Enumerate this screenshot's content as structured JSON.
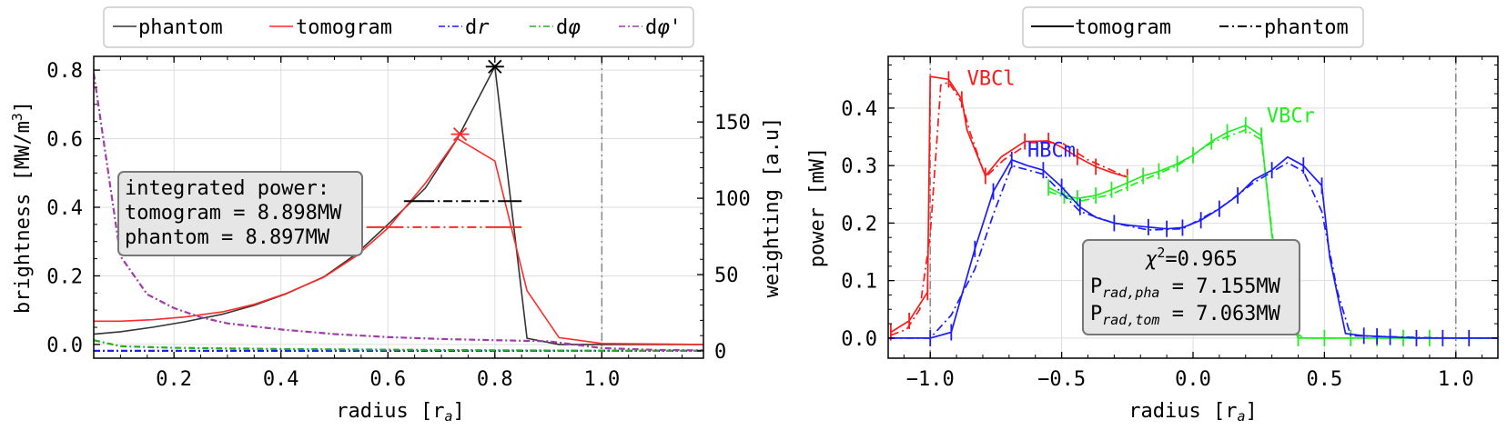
{
  "chart_data": [
    {
      "type": "line",
      "xlabel": "radius [r",
      "xlabel_sub": "a",
      "xlabel_end": "]",
      "ylabel": "brightness [MW/m",
      "ylabel_sup": "3",
      "ylabel_end": "]",
      "y2label": "weighting [a.u]",
      "xlim": [
        0.05,
        1.19
      ],
      "ylim": [
        -0.04,
        0.84
      ],
      "y2lim": [
        -4.8,
        193
      ],
      "x_ticks": [
        0.2,
        0.4,
        0.6,
        0.8,
        1.0
      ],
      "x_tick_labels": [
        "0.2",
        "0.4",
        "0.6",
        "0.8",
        "1.0"
      ],
      "y_ticks": [
        0.0,
        0.2,
        0.4,
        0.6,
        0.8
      ],
      "y_tick_labels": [
        "0.0",
        "0.2",
        "0.4",
        "0.6",
        "0.8"
      ],
      "y2_ticks": [
        0,
        50,
        100,
        150
      ],
      "y2_tick_labels": [
        "0",
        "50",
        "100",
        "150"
      ],
      "grid": true,
      "legend_position": "top (outside)",
      "legend": [
        {
          "label": "phantom",
          "color": "#333333",
          "style": "solid"
        },
        {
          "label": "tomogram",
          "color": "#ff2a2a",
          "style": "solid"
        },
        {
          "label": "dr",
          "label_italic": "r",
          "label_plain": "d",
          "color": "#1c1cff",
          "style": "dashdot"
        },
        {
          "label": "dφ",
          "label_italic": "φ",
          "label_plain": "d",
          "color": "#22b022",
          "style": "dashdot"
        },
        {
          "label": "dφ'",
          "label_italic": "φ'",
          "label_plain": "d",
          "color": "#a03ca8",
          "style": "dashdot"
        }
      ],
      "series": [
        {
          "name": "phantom",
          "color": "#333333",
          "style": "solid",
          "axis": "left",
          "x": [
            0.05,
            0.1,
            0.16,
            0.22,
            0.29,
            0.35,
            0.41,
            0.48,
            0.54,
            0.6,
            0.67,
            0.73,
            0.8,
            0.86,
            0.92,
            1.0,
            1.19
          ],
          "y": [
            0.03,
            0.037,
            0.05,
            0.066,
            0.088,
            0.114,
            0.148,
            0.197,
            0.263,
            0.35,
            0.456,
            0.6,
            0.81,
            0.018,
            0.0,
            0.0,
            0.0
          ]
        },
        {
          "name": "tomogram",
          "color": "#ff2a2a",
          "style": "solid",
          "axis": "left",
          "x": [
            0.05,
            0.1,
            0.16,
            0.22,
            0.29,
            0.35,
            0.41,
            0.48,
            0.54,
            0.6,
            0.67,
            0.73,
            0.8,
            0.86,
            0.92,
            1.0,
            1.19
          ],
          "y": [
            0.068,
            0.068,
            0.072,
            0.08,
            0.095,
            0.117,
            0.149,
            0.196,
            0.257,
            0.339,
            0.47,
            0.6,
            0.535,
            0.157,
            0.02,
            0.003,
            0.0
          ]
        },
        {
          "name": "dr",
          "color": "#1c1cff",
          "style": "dashdot",
          "axis": "right",
          "x": [
            0.05,
            1.19
          ],
          "y": [
            0.0,
            0.0
          ]
        },
        {
          "name": "dφ",
          "color": "#22b022",
          "style": "dashdot",
          "axis": "right",
          "x": [
            0.05,
            0.1,
            0.2,
            0.4,
            0.6,
            0.8,
            1.0,
            1.19
          ],
          "y": [
            7.0,
            3.0,
            2.0,
            1.2,
            0.8,
            0.4,
            0.1,
            0.0
          ]
        },
        {
          "name": "dφ'",
          "color": "#a03ca8",
          "style": "dashdot",
          "axis": "right",
          "x": [
            0.05,
            0.1,
            0.15,
            0.2,
            0.25,
            0.3,
            0.35,
            0.4,
            0.5,
            0.6,
            0.7,
            0.8,
            0.9,
            0.93,
            1.0,
            1.1,
            1.19
          ],
          "y": [
            182,
            62,
            37,
            28,
            22,
            18,
            16,
            14,
            11,
            9,
            7.8,
            7,
            6.3,
            5,
            1.8,
            0.6,
            0.3
          ]
        }
      ],
      "markers": [
        {
          "series": "phantom",
          "x": 0.8,
          "y": 0.81,
          "symbol": "x-star",
          "color": "#000000"
        },
        {
          "series": "tomogram",
          "x": 0.735,
          "y": 0.613,
          "symbol": "x-star",
          "color": "#ff2a2a"
        }
      ],
      "fwhm_lines": [
        {
          "color": "#000000",
          "x": [
            0.63,
            0.85
          ],
          "y": 0.418,
          "style": "solid-dashdot-solid"
        },
        {
          "color": "#ff2a2a",
          "x": [
            0.56,
            0.85
          ],
          "y": 0.342,
          "style": "solid-dashdot-solid"
        }
      ],
      "vline": {
        "x": 1.0,
        "color": "#888888",
        "style": "dashdot"
      },
      "textbox": {
        "lines": [
          "integrated power:",
          "tomogram = 8.898MW",
          "phantom = 8.897MW"
        ],
        "position": "center-left"
      }
    },
    {
      "type": "line",
      "xlabel": "radius [r",
      "xlabel_sub": "a",
      "xlabel_end": "]",
      "ylabel": "power [mW]",
      "xlim": [
        -1.16,
        1.16
      ],
      "ylim": [
        -0.035,
        0.49
      ],
      "x_ticks": [
        -1.0,
        -0.5,
        0.0,
        0.5,
        1.0
      ],
      "x_tick_labels": [
        "−1.0",
        "−0.5",
        "0.0",
        "0.5",
        "1.0"
      ],
      "y_ticks": [
        0.0,
        0.1,
        0.2,
        0.3,
        0.4
      ],
      "y_tick_labels": [
        "0.0",
        "0.1",
        "0.2",
        "0.3",
        "0.4"
      ],
      "grid": true,
      "legend_position": "top (outside)",
      "legend": [
        {
          "label": "tomogram",
          "color": "#000000",
          "style": "solid"
        },
        {
          "label": "phantom",
          "color": "#000000",
          "style": "dashdot"
        }
      ],
      "vlines": [
        {
          "x": -1.0,
          "color": "#888888",
          "style": "dashdot"
        },
        {
          "x": 1.0,
          "color": "#888888",
          "style": "dashdot"
        }
      ],
      "series": [
        {
          "name": "VBCl",
          "color": "#ff1a1a",
          "tomogram": {
            "x": [
              -1.15,
              -1.08,
              -1.01,
              -1.0,
              -0.93,
              -0.88,
              -0.86,
              -0.79,
              -0.73,
              -0.64,
              -0.55,
              -0.5,
              -0.44,
              -0.37,
              -0.31,
              -0.25
            ],
            "y": [
              0.01,
              0.03,
              0.08,
              0.455,
              0.45,
              0.415,
              0.362,
              0.282,
              0.315,
              0.342,
              0.343,
              0.332,
              0.315,
              0.298,
              0.288,
              0.28
            ]
          },
          "phantom": {
            "x": [
              -1.15,
              -1.09,
              -1.04,
              -1.0,
              -0.96,
              -0.93,
              -0.88,
              -0.85,
              -0.79,
              -0.72,
              -0.62,
              -0.5,
              -0.4,
              -0.3,
              -0.25
            ],
            "y": [
              0.005,
              0.015,
              0.05,
              0.18,
              0.44,
              0.445,
              0.41,
              0.36,
              0.28,
              0.31,
              0.34,
              0.34,
              0.31,
              0.29,
              0.28
            ]
          },
          "errorbars_x": [
            -1.15,
            -1.08,
            -1.01,
            -0.93,
            -0.88,
            -0.79,
            -0.64,
            -0.55,
            -0.44,
            -0.37,
            -0.25
          ],
          "label": {
            "text": "VBCl",
            "x": -0.86,
            "y": 0.44
          }
        },
        {
          "name": "VBCr",
          "color": "#22ee22",
          "tomogram": {
            "x": [
              -0.55,
              -0.49,
              -0.44,
              -0.37,
              -0.31,
              -0.25,
              -0.19,
              -0.13,
              -0.06,
              0.0,
              0.07,
              0.13,
              0.2,
              0.26,
              0.3,
              0.34,
              0.4,
              0.5,
              0.6,
              0.7,
              0.8,
              0.9,
              1.0,
              1.16
            ],
            "y": [
              0.262,
              0.248,
              0.243,
              0.248,
              0.258,
              0.27,
              0.282,
              0.29,
              0.303,
              0.318,
              0.342,
              0.358,
              0.37,
              0.352,
              0.18,
              0.06,
              0.0,
              0.0,
              0.0,
              0.0,
              0.0,
              0.0,
              0.0,
              0.0
            ]
          },
          "phantom": {
            "x": [
              -0.55,
              -0.44,
              -0.31,
              -0.19,
              -0.06,
              0.07,
              0.2,
              0.26,
              0.32,
              0.36,
              0.42,
              1.16
            ],
            "y": [
              0.255,
              0.237,
              0.25,
              0.275,
              0.3,
              0.34,
              0.362,
              0.345,
              0.11,
              0.02,
              0.0,
              0.0
            ]
          },
          "errorbars_x": [
            -0.55,
            -0.49,
            -0.44,
            -0.37,
            -0.31,
            -0.25,
            -0.19,
            -0.13,
            -0.06,
            0.0,
            0.07,
            0.13,
            0.2,
            0.26,
            0.4,
            0.5,
            0.6,
            0.7,
            0.8,
            0.9
          ],
          "label": {
            "text": "VBCr",
            "x": 0.28,
            "y": 0.375
          }
        },
        {
          "name": "HBCm",
          "color": "#1c1cff",
          "tomogram": {
            "x": [
              -1.16,
              -1.0,
              -0.92,
              -0.83,
              -0.76,
              -0.69,
              -0.63,
              -0.57,
              -0.5,
              -0.43,
              -0.37,
              -0.3,
              -0.24,
              -0.17,
              -0.1,
              -0.04,
              0.03,
              0.1,
              0.17,
              0.23,
              0.3,
              0.36,
              0.42,
              0.49,
              0.52,
              0.58,
              0.65,
              0.75,
              0.85,
              0.95,
              1.05,
              1.16
            ],
            "y": [
              0.0,
              0.0,
              0.01,
              0.155,
              0.255,
              0.31,
              0.3,
              0.292,
              0.263,
              0.228,
              0.21,
              0.2,
              0.196,
              0.193,
              0.19,
              0.192,
              0.205,
              0.225,
              0.248,
              0.275,
              0.292,
              0.315,
              0.3,
              0.265,
              0.14,
              0.008,
              0.004,
              0.002,
              0.0,
              0.0,
              0.0,
              0.0
            ]
          },
          "phantom": {
            "x": [
              -1.16,
              -1.0,
              -0.92,
              -0.83,
              -0.76,
              -0.69,
              -0.57,
              -0.43,
              -0.3,
              -0.17,
              -0.04,
              0.1,
              0.23,
              0.36,
              0.42,
              0.49,
              0.55,
              0.6,
              0.7,
              0.85,
              1.0,
              1.16
            ],
            "y": [
              0.0,
              0.0,
              0.04,
              0.12,
              0.215,
              0.3,
              0.285,
              0.22,
              0.2,
              0.188,
              0.19,
              0.225,
              0.27,
              0.305,
              0.29,
              0.22,
              0.08,
              0.004,
              0.003,
              0.001,
              0.0,
              0.0
            ]
          },
          "errorbars_x": [
            -1.0,
            -0.92,
            -0.83,
            -0.76,
            -0.69,
            -0.57,
            -0.5,
            -0.43,
            -0.3,
            -0.17,
            -0.1,
            -0.04,
            0.03,
            0.1,
            0.17,
            0.3,
            0.42,
            0.49,
            0.65,
            0.7,
            0.75,
            0.85,
            0.95,
            1.05
          ],
          "label": {
            "text": "HBCm",
            "x": -0.63,
            "y": 0.315
          }
        }
      ],
      "textbox": {
        "lines": [
          "χ²=0.965",
          "P_rad,pha = 7.155MW",
          "P_rad,tom = 7.063MW"
        ],
        "line1_sym": "χ",
        "line1_sup": "2",
        "line1_rest": "=0.965",
        "line2_main": "P",
        "line2_sub": "rad,pha",
        "line2_rest": " = 7.155MW",
        "line3_main": "P",
        "line3_sub": "rad,tom",
        "line3_rest": " = 7.063MW",
        "position": "bottom-center"
      }
    }
  ]
}
